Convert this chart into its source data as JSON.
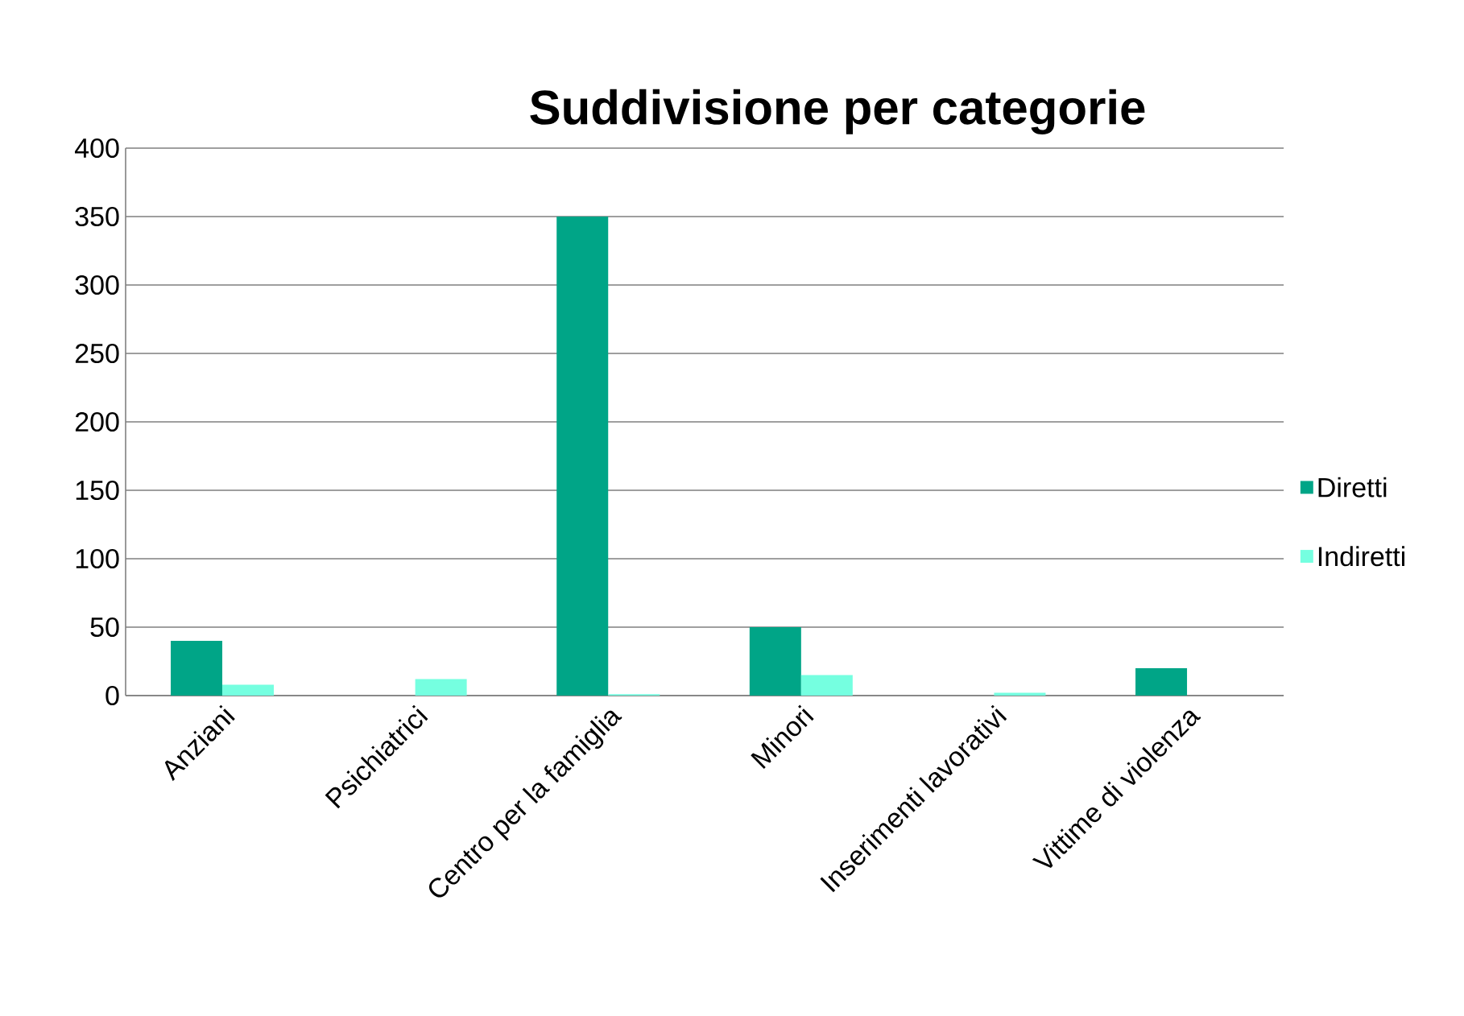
{
  "chart_data": {
    "type": "bar",
    "title": "Suddivisione per categorie",
    "categories": [
      "Anziani",
      "Psichiatrici",
      "Centro per la famiglia",
      "Minori",
      "Inserimenti lavorativi",
      "Vittime di violenza"
    ],
    "series": [
      {
        "name": "Diretti",
        "color": "#00a587",
        "values": [
          40,
          0,
          350,
          50,
          0,
          20
        ]
      },
      {
        "name": "Indiretti",
        "color": "#75ffe0",
        "values": [
          8,
          12,
          1,
          15,
          2,
          0
        ]
      }
    ],
    "ylim": [
      0,
      400
    ],
    "yticks": [
      0,
      50,
      100,
      150,
      200,
      250,
      300,
      350,
      400
    ],
    "grid": "y",
    "legend": "right"
  }
}
